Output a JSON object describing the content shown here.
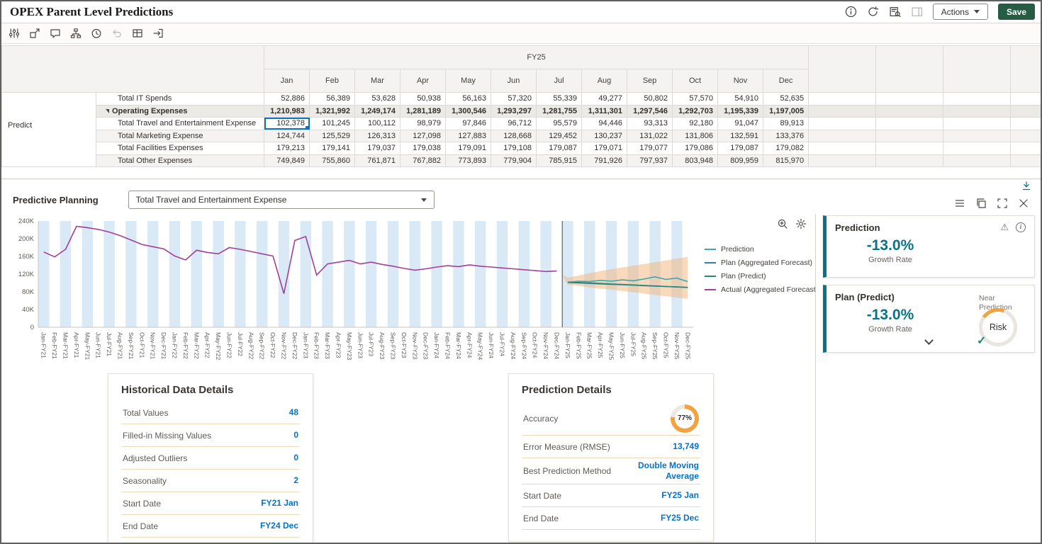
{
  "header": {
    "title": "OPEX Parent Level Predictions",
    "actions_label": "Actions",
    "save_label": "Save",
    "icons": [
      "info",
      "refresh",
      "data-query",
      "side-panel"
    ]
  },
  "toolbar": {
    "icons": [
      "grid-settings",
      "member-selector",
      "comments",
      "hierarchy",
      "history",
      "undo",
      "grid-layout",
      "exit"
    ]
  },
  "grid": {
    "year_header": "FY25",
    "row_group_label": "Predict",
    "months": [
      "Jan",
      "Feb",
      "Mar",
      "Apr",
      "May",
      "Jun",
      "Jul",
      "Aug",
      "Sep",
      "Oct",
      "Nov",
      "Dec"
    ],
    "selected": {
      "row": 2,
      "col": 0
    },
    "rows": [
      {
        "label": "Total IT Spends",
        "parent": false,
        "bold": false,
        "values": [
          "52,886",
          "56,389",
          "53,628",
          "50,938",
          "56,163",
          "57,320",
          "55,339",
          "49,277",
          "50,802",
          "57,570",
          "54,910",
          "52,635"
        ]
      },
      {
        "label": "Operating Expenses",
        "parent": true,
        "bold": true,
        "values": [
          "1,210,983",
          "1,321,992",
          "1,249,174",
          "1,281,189",
          "1,300,546",
          "1,293,297",
          "1,281,755",
          "1,311,301",
          "1,297,546",
          "1,292,703",
          "1,195,339",
          "1,197,005"
        ]
      },
      {
        "label": "Total Travel and Entertainment Expense",
        "parent": false,
        "bold": false,
        "values": [
          "102,378",
          "101,245",
          "100,112",
          "98,979",
          "97,846",
          "96,712",
          "95,579",
          "94,446",
          "93,313",
          "92,180",
          "91,047",
          "89,913"
        ]
      },
      {
        "label": "Total Marketing Expense",
        "parent": false,
        "bold": false,
        "values": [
          "124,744",
          "125,529",
          "126,313",
          "127,098",
          "127,883",
          "128,668",
          "129,452",
          "130,237",
          "131,022",
          "131,806",
          "132,591",
          "133,376"
        ]
      },
      {
        "label": "Total Facilities Expenses",
        "parent": false,
        "bold": false,
        "values": [
          "179,213",
          "179,141",
          "179,037",
          "179,038",
          "179,091",
          "179,108",
          "179,087",
          "179,071",
          "179,077",
          "179,086",
          "179,087",
          "179,082"
        ]
      },
      {
        "label": "Total Other Expenses",
        "parent": false,
        "bold": false,
        "values": [
          "749,849",
          "755,860",
          "761,871",
          "767,882",
          "773,893",
          "779,904",
          "785,915",
          "791,926",
          "797,937",
          "803,948",
          "809,959",
          "815,970"
        ]
      }
    ]
  },
  "predictive": {
    "section_title": "Predictive Planning",
    "member_selector_value": "Total Travel and Entertainment Expense",
    "icons": [
      "menu",
      "copy",
      "maximize",
      "close"
    ]
  },
  "chart_data": {
    "type": "line",
    "values_unit": "thousands",
    "y_max": 240,
    "y_ticks": [
      {
        "v": 0,
        "label": "0"
      },
      {
        "v": 40,
        "label": "40K"
      },
      {
        "v": 80,
        "label": "80K"
      },
      {
        "v": 120,
        "label": "120K"
      },
      {
        "v": 160,
        "label": "160K"
      },
      {
        "v": 200,
        "label": "200K"
      },
      {
        "v": 240,
        "label": "240K"
      }
    ],
    "x_labels": [
      "Jan-FY21",
      "Feb-FY21",
      "Mar-FY21",
      "Apr-FY21",
      "May-FY21",
      "Jun-FY21",
      "Jul-FY21",
      "Aug-FY21",
      "Sep-FY21",
      "Oct-FY21",
      "Nov-FY21",
      "Dec-FY21",
      "Jan-FY22",
      "Feb-FY22",
      "Mar-FY22",
      "Apr-FY22",
      "May-FY22",
      "Jun-FY22",
      "Jul-FY22",
      "Aug-FY22",
      "Sep-FY22",
      "Oct-FY22",
      "Nov-FY22",
      "Dec-FY22",
      "Jan-FY23",
      "Feb-FY23",
      "Mar-FY23",
      "Apr-FY23",
      "May-FY23",
      "Jun-FY23",
      "Jul-FY23",
      "Aug-FY23",
      "Sep-FY23",
      "Oct-FY23",
      "Nov-FY23",
      "Dec-FY23",
      "Jan-FY24",
      "Feb-FY24",
      "Mar-FY24",
      "Apr-FY24",
      "May-FY24",
      "Jun-FY24",
      "Jul-FY24",
      "Aug-FY24",
      "Sep-FY24",
      "Oct-FY24",
      "Nov-FY24",
      "Dec-FY24",
      "Jan-FY25",
      "Feb-FY25",
      "Mar-FY25",
      "Apr-FY25",
      "May-FY25",
      "Jun-FY25",
      "Jul-FY25",
      "Aug-FY25",
      "Sep-FY25",
      "Oct-FY25",
      "Nov-FY25",
      "Dec-FY25"
    ],
    "boundary_index": 48,
    "band_color": "#d9e9f5",
    "series": [
      {
        "name": "Actual (Aggregated Forecast)",
        "color": "#a23f97",
        "start_index": 0,
        "values": [
          170,
          159,
          176,
          228,
          225,
          221,
          215,
          207,
          197,
          187,
          182,
          177,
          161,
          152,
          174,
          169,
          166,
          180,
          176,
          171,
          166,
          161,
          76,
          196,
          205,
          118,
          143,
          147,
          151,
          143,
          147,
          142,
          138,
          133,
          129,
          132,
          136,
          139,
          137,
          141,
          138,
          136,
          134,
          132,
          130,
          128,
          126,
          127
        ]
      },
      {
        "name": "Plan (Aggregated Forecast)",
        "color": "#2f7fa8",
        "start_index": 48,
        "values": [
          101,
          100,
          99,
          98,
          97,
          96,
          95,
          94,
          93,
          92,
          91,
          90
        ]
      },
      {
        "name": "Plan (Predict)",
        "color": "#238a78",
        "start_index": 48,
        "values": [
          102.4,
          101.2,
          100.1,
          99,
          97.8,
          96.7,
          95.6,
          94.4,
          93.3,
          92.2,
          91,
          89.9
        ]
      },
      {
        "name": "Prediction",
        "color": "#3aa8b2",
        "start_index": 48,
        "values": [
          102,
          104,
          103,
          106,
          104,
          107,
          105,
          109,
          114,
          108,
          111,
          103
        ]
      }
    ],
    "confidence_interval": {
      "start_index": 48,
      "start_value": 118,
      "color": "#f3b379",
      "upper": [
        112,
        117,
        122,
        127,
        131,
        135,
        139,
        143,
        147,
        151,
        155,
        159
      ],
      "lower": [
        96,
        93,
        90,
        87,
        85,
        82,
        79,
        76,
        73,
        70,
        67,
        64
      ]
    },
    "legend": [
      "Prediction",
      "Plan (Aggregated Forecast)",
      "Plan (Predict)",
      "Actual (Aggregated Forecast)"
    ],
    "legend_position": "right"
  },
  "prediction_card": {
    "title": "Prediction",
    "value": "-13.0%",
    "label": "Growth Rate"
  },
  "plan_card": {
    "title": "Plan (Predict)",
    "value": "-13.0%",
    "label": "Growth Rate",
    "gauge_label": "Risk",
    "note": "Near Prediction"
  },
  "historical_details": {
    "title": "Historical Data Details",
    "rows": [
      {
        "label": "Total Values",
        "value": "48"
      },
      {
        "label": "Filled-in Missing Values",
        "value": "0"
      },
      {
        "label": "Adjusted Outliers",
        "value": "0"
      },
      {
        "label": "Seasonality",
        "value": "2"
      },
      {
        "label": "Start Date",
        "value": "FY21 Jan"
      },
      {
        "label": "End Date",
        "value": "FY24 Dec"
      }
    ]
  },
  "prediction_details": {
    "title": "Prediction Details",
    "accuracy_pct": 77,
    "rows": [
      {
        "label": "Accuracy",
        "value": "77%",
        "type": "gauge"
      },
      {
        "label": "Error Measure (RMSE)",
        "value": "13,749"
      },
      {
        "label": "Best Prediction Method",
        "value": "Double Moving Average"
      },
      {
        "label": "Start Date",
        "value": "FY25 Jan"
      },
      {
        "label": "End Date",
        "value": "FY25 Dec"
      }
    ]
  },
  "colors": {
    "accent_teal": "#0a7287",
    "link_blue": "#0572ce",
    "save_green": "#255c43",
    "gauge_orange": "#f0a33f"
  }
}
